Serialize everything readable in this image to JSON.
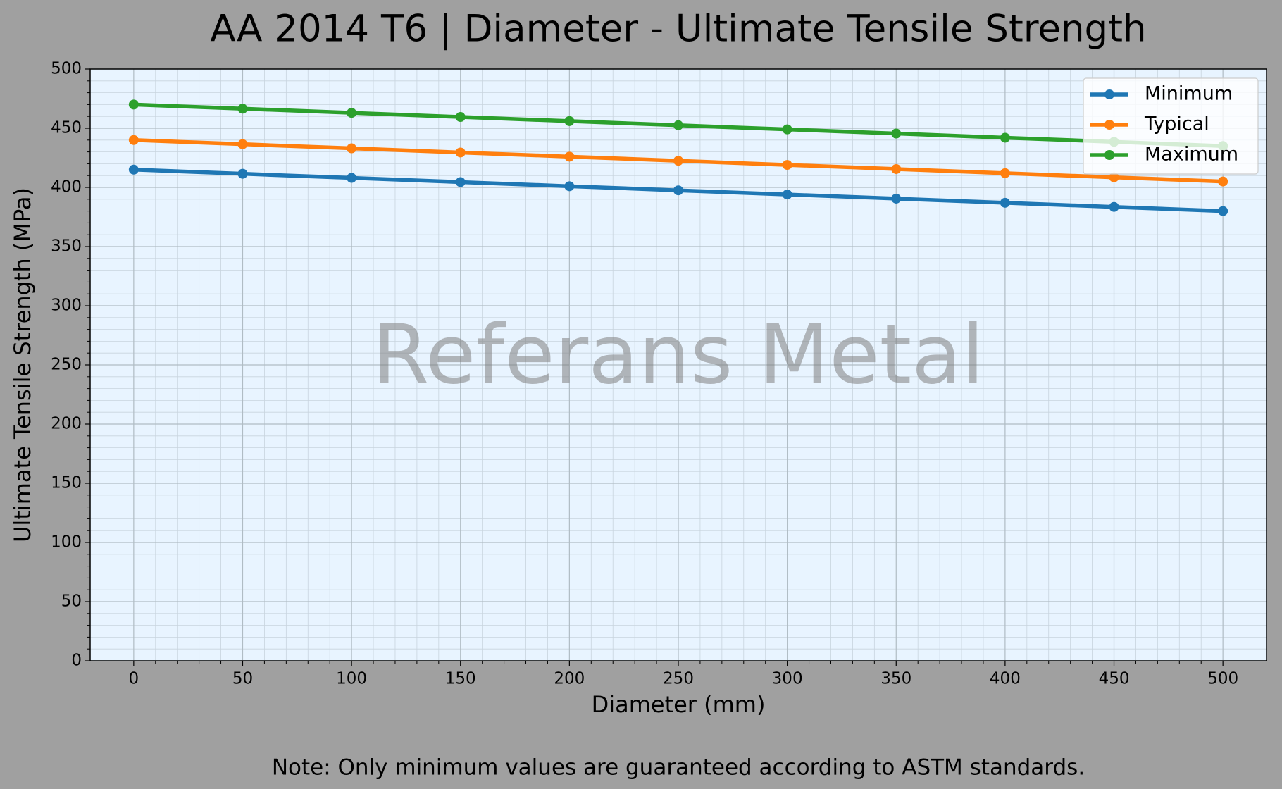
{
  "chart_data": {
    "type": "line",
    "title": "AA 2014 T6 | Diameter - Ultimate Tensile Strength",
    "xlabel": "Diameter (mm)",
    "ylabel": "Ultimate Tensile Strength (MPa)",
    "watermark": "Referans Metal",
    "note": "Note: Only minimum values are guaranteed according to ASTM standards.",
    "x": [
      0,
      50,
      100,
      150,
      200,
      250,
      300,
      350,
      400,
      450,
      500
    ],
    "series": [
      {
        "name": "Minimum",
        "color": "#1f77b4",
        "values": [
          415,
          411.5,
          408,
          404.5,
          401,
          397.5,
          394,
          390.5,
          387,
          383.5,
          380
        ]
      },
      {
        "name": "Typical",
        "color": "#ff7f0e",
        "values": [
          440,
          436.5,
          433,
          429.5,
          426,
          422.5,
          419,
          415.5,
          412,
          408.5,
          405
        ]
      },
      {
        "name": "Maximum",
        "color": "#2ca02c",
        "values": [
          470,
          466.5,
          463,
          459.5,
          456,
          452.5,
          449,
          445.5,
          442,
          438.5,
          435
        ]
      }
    ],
    "xlim": [
      -20,
      520
    ],
    "xticks": [
      0,
      50,
      100,
      150,
      200,
      250,
      300,
      350,
      400,
      450,
      500
    ],
    "ylim": [
      0,
      500
    ],
    "yticks": [
      0,
      50,
      100,
      150,
      200,
      250,
      300,
      350,
      400,
      450,
      500
    ],
    "grid": true,
    "legend": "upper right"
  }
}
